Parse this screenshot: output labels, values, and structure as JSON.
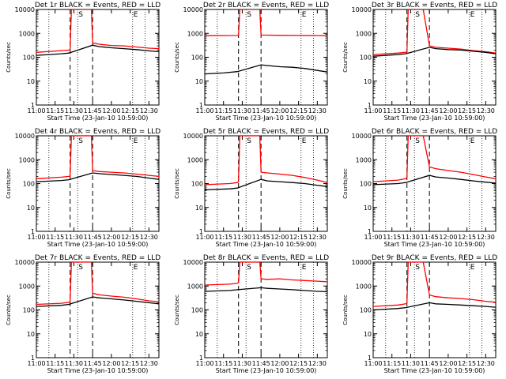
{
  "chart_data": [
    {
      "type": "line",
      "title": "Det 1r BLACK = Events, RED = LLD",
      "xlabel": "Start Time (23-Jan-10 10:59:00)",
      "ylabel": "Counts/sec",
      "yscale": "log",
      "xlim": [
        "11:00",
        "12:38"
      ],
      "ylim": [
        1,
        10000
      ],
      "x_ticks": [
        "11:00",
        "11:15",
        "11:30",
        "11:45",
        "12:00",
        "12:15",
        "12:30"
      ],
      "y_ticks": [
        "1",
        "10",
        "100",
        "1000",
        "10000"
      ],
      "markers": {
        "S": "11:33",
        "E": "12:17"
      },
      "dashed_lines": [
        "11:27",
        "11:45"
      ],
      "dotted_lines": [
        "11:10",
        "11:33",
        "12:17",
        "12:27"
      ],
      "series": [
        {
          "color": "#ff0000",
          "x": [
            "11:00",
            "11:20",
            "11:26",
            "11:27",
            "11:28",
            "11:44",
            "11:45",
            "11:50",
            "12:00",
            "12:10",
            "12:20",
            "12:30",
            "12:38"
          ],
          "y": [
            160,
            190,
            200,
            210,
            10000,
            10000,
            400,
            350,
            310,
            300,
            270,
            240,
            230
          ]
        },
        {
          "color": "#000000",
          "x": [
            "11:00",
            "11:20",
            "11:26",
            "11:45",
            "11:50",
            "12:00",
            "12:10",
            "12:20",
            "12:30",
            "12:38"
          ],
          "y": [
            120,
            140,
            150,
            320,
            280,
            250,
            230,
            210,
            185,
            170
          ]
        }
      ]
    },
    {
      "type": "line",
      "title": "Det 2r BLACK = Events, RED = LLD",
      "xlabel": "Start Time (23-Jan-10 10:59:00)",
      "ylabel": "Counts/sec",
      "yscale": "log",
      "xlim": [
        "11:00",
        "12:38"
      ],
      "ylim": [
        1,
        10000
      ],
      "x_ticks": [
        "11:00",
        "11:15",
        "11:30",
        "11:45",
        "12:00",
        "12:15",
        "12:30"
      ],
      "y_ticks": [
        "1",
        "10",
        "100",
        "1000",
        "10000"
      ],
      "markers": {
        "S": "11:33",
        "E": "12:17"
      },
      "dashed_lines": [
        "11:27",
        "11:45"
      ],
      "dotted_lines": [
        "11:10",
        "11:33",
        "12:17",
        "12:27"
      ],
      "series": [
        {
          "color": "#ff0000",
          "x": [
            "11:00",
            "11:26",
            "11:27",
            "11:28",
            "11:44",
            "11:45",
            "11:50",
            "12:00",
            "12:15",
            "12:30",
            "12:38"
          ],
          "y": [
            800,
            820,
            830,
            10000,
            10000,
            850,
            840,
            830,
            820,
            810,
            800
          ]
        },
        {
          "color": "#000000",
          "x": [
            "11:00",
            "11:15",
            "11:26",
            "11:45",
            "11:50",
            "12:00",
            "12:10",
            "12:20",
            "12:30",
            "12:38"
          ],
          "y": [
            20,
            22,
            25,
            48,
            45,
            40,
            38,
            34,
            28,
            24
          ]
        }
      ]
    },
    {
      "type": "line",
      "title": "Det 3r BLACK = Events, RED = LLD",
      "xlabel": "Start Time (23-Jan-10 10:59:00)",
      "ylabel": "Counts/sec",
      "yscale": "log",
      "xlim": [
        "11:00",
        "12:38"
      ],
      "ylim": [
        1,
        10000
      ],
      "x_ticks": [
        "11:00",
        "11:15",
        "11:30",
        "11:45",
        "12:00",
        "12:15",
        "12:30"
      ],
      "y_ticks": [
        "1",
        "10",
        "100",
        "1000",
        "10000"
      ],
      "markers": {
        "S": "11:33",
        "E": "12:17"
      },
      "dashed_lines": [
        "11:27",
        "11:45"
      ],
      "dotted_lines": [
        "11:10",
        "11:33",
        "12:17",
        "12:27"
      ],
      "series": [
        {
          "color": "#ff0000",
          "x": [
            "11:00",
            "11:20",
            "11:26",
            "11:27",
            "11:28",
            "11:40",
            "11:45",
            "11:50",
            "12:00",
            "12:10",
            "12:20",
            "12:30",
            "12:38"
          ],
          "y": [
            130,
            150,
            160,
            170,
            10000,
            10000,
            300,
            260,
            240,
            220,
            190,
            170,
            150
          ]
        },
        {
          "color": "#000000",
          "x": [
            "11:00",
            "11:20",
            "11:26",
            "11:45",
            "11:50",
            "12:00",
            "12:10",
            "12:20",
            "12:30",
            "12:38"
          ],
          "y": [
            110,
            130,
            140,
            260,
            230,
            210,
            200,
            180,
            160,
            140
          ]
        }
      ]
    },
    {
      "type": "line",
      "title": "Det 4r BLACK = Events, RED = LLD",
      "xlabel": "Start Time (23-Jan-10 10:59:00)",
      "ylabel": "Counts/sec",
      "yscale": "log",
      "xlim": [
        "11:00",
        "12:38"
      ],
      "ylim": [
        1,
        10000
      ],
      "x_ticks": [
        "11:00",
        "11:15",
        "11:30",
        "11:45",
        "12:00",
        "12:15",
        "12:30"
      ],
      "y_ticks": [
        "1",
        "10",
        "100",
        "1000",
        "10000"
      ],
      "markers": {
        "S": "11:33",
        "E": "12:17"
      },
      "dashed_lines": [
        "11:27",
        "11:45"
      ],
      "dotted_lines": [
        "11:10",
        "11:33",
        "12:17",
        "12:27"
      ],
      "series": [
        {
          "color": "#ff0000",
          "x": [
            "11:00",
            "11:20",
            "11:26",
            "11:27",
            "11:28",
            "11:44",
            "11:45",
            "11:50",
            "12:00",
            "12:10",
            "12:20",
            "12:30",
            "12:38"
          ],
          "y": [
            160,
            185,
            200,
            210,
            10000,
            10000,
            350,
            320,
            300,
            280,
            250,
            220,
            200
          ]
        },
        {
          "color": "#000000",
          "x": [
            "11:00",
            "11:20",
            "11:26",
            "11:45",
            "11:50",
            "12:00",
            "12:10",
            "12:20",
            "12:30",
            "12:38"
          ],
          "y": [
            120,
            135,
            145,
            280,
            260,
            240,
            220,
            200,
            170,
            150
          ]
        }
      ]
    },
    {
      "type": "line",
      "title": "Det 5r BLACK = Events, RED = LLD",
      "xlabel": "Start Time (23-Jan-10 10:59:00)",
      "ylabel": "Counts/sec",
      "yscale": "log",
      "xlim": [
        "11:00",
        "12:38"
      ],
      "ylim": [
        1,
        10000
      ],
      "x_ticks": [
        "11:00",
        "11:15",
        "11:30",
        "11:45",
        "12:00",
        "12:15",
        "12:30"
      ],
      "y_ticks": [
        "1",
        "10",
        "100",
        "1000",
        "10000"
      ],
      "markers": {
        "S": "11:33",
        "E": "12:17"
      },
      "dashed_lines": [
        "11:27",
        "11:45"
      ],
      "dotted_lines": [
        "11:10",
        "11:33",
        "12:17",
        "12:27"
      ],
      "series": [
        {
          "color": "#ff0000",
          "x": [
            "11:00",
            "11:20",
            "11:26",
            "11:27",
            "11:28",
            "11:44",
            "11:45",
            "11:50",
            "12:00",
            "12:10",
            "12:20",
            "12:30",
            "12:38"
          ],
          "y": [
            90,
            100,
            110,
            120,
            10000,
            10000,
            300,
            280,
            250,
            220,
            180,
            140,
            110
          ]
        },
        {
          "color": "#000000",
          "x": [
            "11:00",
            "11:20",
            "11:26",
            "11:45",
            "11:50",
            "12:00",
            "12:10",
            "12:20",
            "12:30",
            "12:38"
          ],
          "y": [
            55,
            60,
            65,
            150,
            130,
            120,
            110,
            100,
            85,
            75
          ]
        }
      ]
    },
    {
      "type": "line",
      "title": "Det 6r BLACK = Events, RED = LLD",
      "xlabel": "Start Time (23-Jan-10 10:59:00)",
      "ylabel": "Counts/sec",
      "yscale": "log",
      "xlim": [
        "11:00",
        "12:38"
      ],
      "ylim": [
        1,
        10000
      ],
      "x_ticks": [
        "11:00",
        "11:15",
        "11:30",
        "11:45",
        "12:00",
        "12:15",
        "12:30"
      ],
      "y_ticks": [
        "1",
        "10",
        "100",
        "1000",
        "10000"
      ],
      "markers": {
        "S": "11:33",
        "E": "12:17"
      },
      "dashed_lines": [
        "11:27",
        "11:45"
      ],
      "dotted_lines": [
        "11:10",
        "11:33",
        "12:17",
        "12:27"
      ],
      "series": [
        {
          "color": "#ff0000",
          "x": [
            "11:00",
            "11:20",
            "11:26",
            "11:27",
            "11:28",
            "11:40",
            "11:45",
            "11:50",
            "12:00",
            "12:10",
            "12:20",
            "12:30",
            "12:38"
          ],
          "y": [
            120,
            140,
            160,
            170,
            10000,
            10000,
            500,
            420,
            350,
            300,
            240,
            190,
            160
          ]
        },
        {
          "color": "#000000",
          "x": [
            "11:00",
            "11:20",
            "11:26",
            "11:45",
            "11:50",
            "12:00",
            "12:10",
            "12:20",
            "12:30",
            "12:38"
          ],
          "y": [
            90,
            100,
            110,
            220,
            190,
            170,
            150,
            130,
            115,
            105
          ]
        }
      ]
    },
    {
      "type": "line",
      "title": "Det 7r BLACK = Events, RED = LLD",
      "xlabel": "Start Time (23-Jan-10 10:59:00)",
      "ylabel": "Counts/sec",
      "yscale": "log",
      "xlim": [
        "11:00",
        "12:38"
      ],
      "ylim": [
        1,
        10000
      ],
      "x_ticks": [
        "11:00",
        "11:15",
        "11:30",
        "11:45",
        "12:00",
        "12:15",
        "12:30"
      ],
      "y_ticks": [
        "1",
        "10",
        "100",
        "1000",
        "10000"
      ],
      "markers": {
        "S": "11:33",
        "E": "12:17"
      },
      "dashed_lines": [
        "11:27",
        "11:45"
      ],
      "dotted_lines": [
        "11:10",
        "11:33",
        "12:17",
        "12:27"
      ],
      "series": [
        {
          "color": "#ff0000",
          "x": [
            "11:00",
            "11:20",
            "11:26",
            "11:27",
            "11:28",
            "11:44",
            "11:45",
            "11:50",
            "12:00",
            "12:10",
            "12:20",
            "12:30",
            "12:38"
          ],
          "y": [
            170,
            190,
            210,
            220,
            10000,
            10000,
            500,
            430,
            380,
            340,
            290,
            240,
            220
          ]
        },
        {
          "color": "#000000",
          "x": [
            "11:00",
            "11:20",
            "11:26",
            "11:45",
            "11:50",
            "12:00",
            "12:10",
            "12:20",
            "12:30",
            "12:38"
          ],
          "y": [
            140,
            155,
            170,
            350,
            320,
            290,
            260,
            230,
            200,
            180
          ]
        }
      ]
    },
    {
      "type": "line",
      "title": "Det 8r BLACK = Events, RED = LLD",
      "xlabel": "Start Time (23-Jan-10 10:59:00)",
      "ylabel": "Counts/sec",
      "yscale": "log",
      "xlim": [
        "11:00",
        "12:38"
      ],
      "ylim": [
        1,
        10000
      ],
      "x_ticks": [
        "11:00",
        "11:15",
        "11:30",
        "11:45",
        "12:00",
        "12:15",
        "12:30"
      ],
      "y_ticks": [
        "1",
        "10",
        "100",
        "1000",
        "10000"
      ],
      "markers": {
        "S": "11:33",
        "E": "12:17"
      },
      "dashed_lines": [
        "11:27",
        "11:45"
      ],
      "dotted_lines": [
        "11:10",
        "11:33",
        "12:17",
        "12:27"
      ],
      "series": [
        {
          "color": "#ff0000",
          "x": [
            "11:00",
            "11:20",
            "11:26",
            "11:27",
            "11:28",
            "11:44",
            "11:45",
            "11:50",
            "12:00",
            "12:10",
            "12:20",
            "12:30",
            "12:38"
          ],
          "y": [
            1100,
            1200,
            1300,
            1400,
            10000,
            10000,
            2000,
            1900,
            2000,
            1800,
            1700,
            1600,
            1500
          ]
        },
        {
          "color": "#000000",
          "x": [
            "11:00",
            "11:20",
            "11:26",
            "11:45",
            "11:50",
            "12:00",
            "12:10",
            "12:20",
            "12:30",
            "12:38"
          ],
          "y": [
            600,
            650,
            700,
            850,
            800,
            750,
            700,
            650,
            600,
            580
          ]
        }
      ]
    },
    {
      "type": "line",
      "title": "Det 9r BLACK = Events, RED = LLD",
      "xlabel": "Start Time (23-Jan-10 10:59:00)",
      "ylabel": "Counts/sec",
      "yscale": "log",
      "xlim": [
        "11:00",
        "12:38"
      ],
      "ylim": [
        1,
        10000
      ],
      "x_ticks": [
        "11:00",
        "11:15",
        "11:30",
        "11:45",
        "12:00",
        "12:15",
        "12:30"
      ],
      "y_ticks": [
        "1",
        "10",
        "100",
        "1000",
        "10000"
      ],
      "markers": {
        "S": "11:33",
        "E": "12:17"
      },
      "dashed_lines": [
        "11:27",
        "11:45"
      ],
      "dotted_lines": [
        "11:10",
        "11:33",
        "12:17",
        "12:27"
      ],
      "series": [
        {
          "color": "#ff0000",
          "x": [
            "11:00",
            "11:20",
            "11:26",
            "11:27",
            "11:28",
            "11:40",
            "11:45",
            "11:50",
            "12:00",
            "12:10",
            "12:20",
            "12:30",
            "12:38"
          ],
          "y": [
            140,
            160,
            180,
            190,
            10000,
            10000,
            420,
            360,
            320,
            300,
            270,
            230,
            210
          ]
        },
        {
          "color": "#000000",
          "x": [
            "11:00",
            "11:20",
            "11:26",
            "11:45",
            "11:50",
            "12:00",
            "12:10",
            "12:20",
            "12:30",
            "12:38"
          ],
          "y": [
            100,
            115,
            125,
            200,
            180,
            170,
            160,
            150,
            140,
            130
          ]
        }
      ]
    }
  ]
}
